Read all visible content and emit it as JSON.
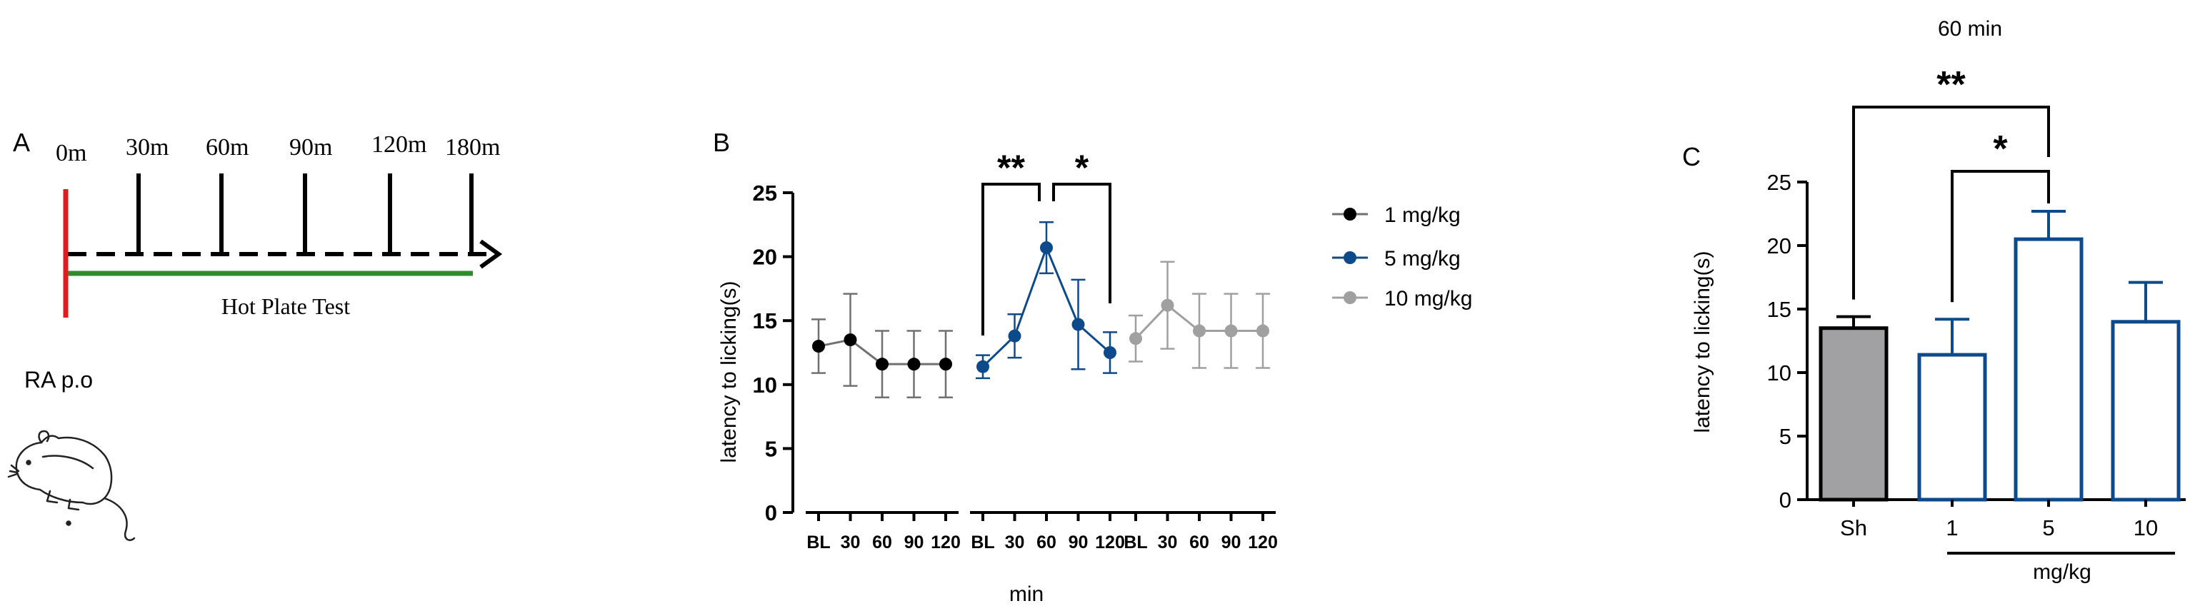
{
  "colors": {
    "black": "#000000",
    "blue": "#0d4a8c",
    "gray": "#a0a0a0",
    "dark_gray": "#707070",
    "red": "#e8191c",
    "green": "#2e8b2e",
    "sham_fill": "#a1a1a4",
    "timeline_text": "#1a1a1a"
  },
  "panel_a": {
    "letter": "A",
    "time_labels": [
      "0m",
      "30m",
      "60m",
      "90m",
      "120m",
      "180m"
    ],
    "test_label": "Hot Plate Test",
    "admin_label": "RA p.o",
    "animal_icon": "rat-icon"
  },
  "chart_data": [
    {
      "panel": "B",
      "type": "line",
      "letter": "B",
      "ylabel": "latency to licking(s)",
      "xlabel": "min",
      "ylim": [
        0,
        25
      ],
      "yticks": [
        0,
        5,
        10,
        15,
        20,
        25
      ],
      "categories": [
        "BL",
        "30",
        "60",
        "90",
        "120"
      ],
      "series": [
        {
          "name": "1 mg/kg",
          "color": "#000000",
          "line_color": "#707070",
          "values": [
            13.0,
            13.5,
            11.6,
            11.6,
            11.6
          ],
          "errors": [
            2.1,
            3.6,
            2.6,
            2.6,
            2.6
          ]
        },
        {
          "name": "5 mg/kg",
          "color": "#0d4a8c",
          "line_color": "#0d4a8c",
          "values": [
            11.4,
            13.8,
            20.7,
            14.7,
            12.5
          ],
          "errors": [
            0.9,
            1.7,
            2.0,
            3.5,
            1.6
          ]
        },
        {
          "name": "10 mg/kg",
          "color": "#a0a0a0",
          "line_color": "#a0a0a0",
          "values": [
            13.6,
            16.2,
            14.2,
            14.2,
            14.2
          ],
          "errors": [
            1.8,
            3.4,
            2.9,
            2.9,
            2.9
          ]
        }
      ],
      "significance": [
        {
          "series": "5 mg/kg",
          "from": "BL",
          "to": "60",
          "label": "**"
        },
        {
          "series": "5 mg/kg",
          "from": "60",
          "to": "120",
          "label": "*"
        }
      ]
    },
    {
      "panel": "C",
      "type": "bar",
      "letter": "C",
      "title": "60 min",
      "ylabel": "latency to licking(s)",
      "xlabel": "mg/kg",
      "ylim": [
        0,
        25
      ],
      "yticks": [
        0,
        5,
        10,
        15,
        20,
        25
      ],
      "categories": [
        "Sh",
        "1",
        "5",
        "10"
      ],
      "values": [
        13.5,
        11.4,
        20.5,
        14.0
      ],
      "errors": [
        0.9,
        2.8,
        2.2,
        3.1
      ],
      "styles": [
        "filled",
        "open",
        "open",
        "open"
      ],
      "significance": [
        {
          "from": "Sh",
          "to": "5",
          "label": "**"
        },
        {
          "from": "1",
          "to": "5",
          "label": "*"
        }
      ]
    }
  ]
}
